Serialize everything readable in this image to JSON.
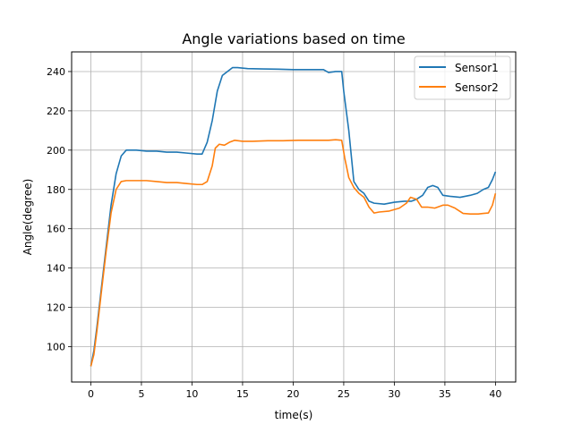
{
  "chart_data": {
    "type": "line",
    "title": "Angle variations based on time",
    "xlabel": "time(s)",
    "ylabel": "Angle(degree)",
    "xlim": [
      -1.9,
      42.0
    ],
    "ylim": [
      82,
      250
    ],
    "xticks": [
      0,
      5,
      10,
      15,
      20,
      25,
      30,
      35,
      40
    ],
    "yticks": [
      100,
      120,
      140,
      160,
      180,
      200,
      220,
      240
    ],
    "grid": true,
    "legend_position": "top-right",
    "series": [
      {
        "name": "Sensor1",
        "color": "#1f77b4",
        "points": [
          [
            0,
            90
          ],
          [
            0.3,
            98
          ],
          [
            0.6,
            110
          ],
          [
            1.0,
            128
          ],
          [
            1.5,
            150
          ],
          [
            2.0,
            172
          ],
          [
            2.5,
            188
          ],
          [
            3.0,
            197
          ],
          [
            3.5,
            200
          ],
          [
            4.5,
            200
          ],
          [
            5.5,
            199.5
          ],
          [
            6.5,
            199.5
          ],
          [
            7.5,
            199
          ],
          [
            8.5,
            199
          ],
          [
            9.5,
            198.5
          ],
          [
            10.5,
            198
          ],
          [
            11.0,
            198
          ],
          [
            11.5,
            204
          ],
          [
            12.0,
            215
          ],
          [
            12.5,
            230
          ],
          [
            13.0,
            238
          ],
          [
            13.5,
            240
          ],
          [
            14.0,
            242
          ],
          [
            14.5,
            242
          ],
          [
            15.5,
            241.5
          ],
          [
            17.0,
            241.3
          ],
          [
            18.5,
            241.2
          ],
          [
            20.0,
            241
          ],
          [
            21.5,
            241
          ],
          [
            23.0,
            241
          ],
          [
            23.5,
            239.5
          ],
          [
            24.2,
            240
          ],
          [
            24.8,
            240
          ],
          [
            25.0,
            230
          ],
          [
            25.5,
            210
          ],
          [
            26.0,
            184
          ],
          [
            26.5,
            180
          ],
          [
            27.0,
            178
          ],
          [
            27.5,
            174
          ],
          [
            28.0,
            173
          ],
          [
            29.0,
            172.5
          ],
          [
            30.0,
            173.5
          ],
          [
            31.0,
            174
          ],
          [
            31.7,
            174
          ],
          [
            32.2,
            175
          ],
          [
            32.8,
            177
          ],
          [
            33.3,
            181
          ],
          [
            33.8,
            182
          ],
          [
            34.3,
            181
          ],
          [
            34.8,
            177
          ],
          [
            35.5,
            176.5
          ],
          [
            36.5,
            176
          ],
          [
            37.5,
            177
          ],
          [
            38.2,
            178
          ],
          [
            38.8,
            180
          ],
          [
            39.3,
            181
          ],
          [
            39.7,
            185
          ],
          [
            40.0,
            189
          ]
        ]
      },
      {
        "name": "Sensor2",
        "color": "#ff7f0e",
        "points": [
          [
            0,
            90
          ],
          [
            0.3,
            96
          ],
          [
            0.6,
            108
          ],
          [
            1.0,
            126
          ],
          [
            1.5,
            148
          ],
          [
            2.0,
            168
          ],
          [
            2.5,
            180
          ],
          [
            3.0,
            184
          ],
          [
            3.5,
            184.5
          ],
          [
            4.5,
            184.5
          ],
          [
            5.5,
            184.5
          ],
          [
            6.5,
            184
          ],
          [
            7.5,
            183.5
          ],
          [
            8.5,
            183.5
          ],
          [
            9.5,
            183
          ],
          [
            10.5,
            182.5
          ],
          [
            11.0,
            182.5
          ],
          [
            11.5,
            184
          ],
          [
            12.0,
            192
          ],
          [
            12.3,
            201
          ],
          [
            12.7,
            203
          ],
          [
            13.2,
            202.5
          ],
          [
            13.7,
            204
          ],
          [
            14.2,
            205
          ],
          [
            15.0,
            204.5
          ],
          [
            16.0,
            204.5
          ],
          [
            17.5,
            204.8
          ],
          [
            19.0,
            204.8
          ],
          [
            20.5,
            205
          ],
          [
            22.0,
            205
          ],
          [
            23.5,
            205
          ],
          [
            24.2,
            205.3
          ],
          [
            24.8,
            205
          ],
          [
            25.1,
            196
          ],
          [
            25.5,
            186
          ],
          [
            26.0,
            181
          ],
          [
            26.5,
            178
          ],
          [
            27.0,
            176
          ],
          [
            27.5,
            171
          ],
          [
            28.0,
            168
          ],
          [
            28.5,
            168.5
          ],
          [
            29.5,
            169
          ],
          [
            30.5,
            170.5
          ],
          [
            31.2,
            173
          ],
          [
            31.6,
            176
          ],
          [
            32.2,
            175
          ],
          [
            32.7,
            171
          ],
          [
            33.3,
            171
          ],
          [
            34.0,
            170.5
          ],
          [
            34.8,
            172
          ],
          [
            35.3,
            172
          ],
          [
            36.0,
            170.5
          ],
          [
            36.8,
            167.8
          ],
          [
            37.5,
            167.5
          ],
          [
            38.3,
            167.5
          ],
          [
            38.8,
            167.8
          ],
          [
            39.3,
            168
          ],
          [
            39.7,
            172
          ],
          [
            40.0,
            178
          ]
        ]
      }
    ]
  }
}
